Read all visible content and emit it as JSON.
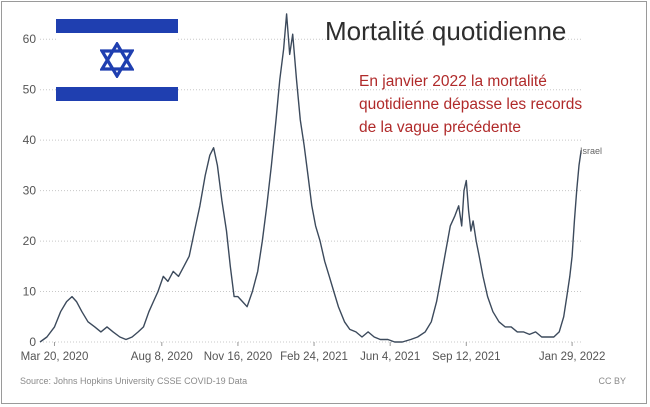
{
  "chart_data": {
    "type": "line",
    "title": "Mortalité quotidienne",
    "annotation": [
      "En janvier 2022 la mortalité",
      "quotidienne  dépasse les records",
      "de la vague précédente"
    ],
    "xlabel": "",
    "ylabel": "",
    "x_tick_labels": [
      "Mar 20, 2020",
      "Aug 8, 2020",
      "Nov 16, 2020",
      "Feb 24, 2021",
      "Jun 4, 2021",
      "Sep 12, 2021",
      "Jan 29, 2022"
    ],
    "x_tick_dates": [
      "2020-03-20",
      "2020-08-08",
      "2020-11-16",
      "2021-02-24",
      "2021-06-04",
      "2021-09-12",
      "2022-01-29"
    ],
    "xlim": [
      "2020-03-01",
      "2022-02-11"
    ],
    "ylim": [
      0,
      65
    ],
    "y_ticks": [
      0,
      10,
      20,
      30,
      40,
      50,
      60
    ],
    "grid": "horizontal",
    "series": [
      {
        "name": "Israel",
        "color": "#3c4a5c",
        "points": [
          [
            "2020-03-01",
            0
          ],
          [
            "2020-03-10",
            1
          ],
          [
            "2020-03-20",
            3
          ],
          [
            "2020-03-28",
            6
          ],
          [
            "2020-04-05",
            8
          ],
          [
            "2020-04-12",
            9
          ],
          [
            "2020-04-18",
            8
          ],
          [
            "2020-04-25",
            6
          ],
          [
            "2020-05-03",
            4
          ],
          [
            "2020-05-12",
            3
          ],
          [
            "2020-05-20",
            2
          ],
          [
            "2020-05-28",
            3
          ],
          [
            "2020-06-05",
            2
          ],
          [
            "2020-06-14",
            1
          ],
          [
            "2020-06-22",
            0.5
          ],
          [
            "2020-06-30",
            1
          ],
          [
            "2020-07-08",
            2
          ],
          [
            "2020-07-15",
            3
          ],
          [
            "2020-07-22",
            6
          ],
          [
            "2020-07-28",
            8
          ],
          [
            "2020-08-03",
            10
          ],
          [
            "2020-08-10",
            13
          ],
          [
            "2020-08-16",
            12
          ],
          [
            "2020-08-23",
            14
          ],
          [
            "2020-08-30",
            13
          ],
          [
            "2020-09-06",
            15
          ],
          [
            "2020-09-13",
            17
          ],
          [
            "2020-09-20",
            22
          ],
          [
            "2020-09-27",
            27
          ],
          [
            "2020-10-04",
            33
          ],
          [
            "2020-10-10",
            37
          ],
          [
            "2020-10-15",
            38.5
          ],
          [
            "2020-10-20",
            35
          ],
          [
            "2020-10-26",
            28
          ],
          [
            "2020-11-01",
            22
          ],
          [
            "2020-11-06",
            15
          ],
          [
            "2020-11-11",
            9
          ],
          [
            "2020-11-16",
            9
          ],
          [
            "2020-11-22",
            8
          ],
          [
            "2020-11-28",
            7
          ],
          [
            "2020-12-05",
            10
          ],
          [
            "2020-12-12",
            14
          ],
          [
            "2020-12-18",
            20
          ],
          [
            "2020-12-24",
            27
          ],
          [
            "2020-12-30",
            35
          ],
          [
            "2021-01-05",
            44
          ],
          [
            "2021-01-10",
            52
          ],
          [
            "2021-01-15",
            58
          ],
          [
            "2021-01-19",
            65
          ],
          [
            "2021-01-23",
            57
          ],
          [
            "2021-01-27",
            61
          ],
          [
            "2021-02-01",
            52
          ],
          [
            "2021-02-06",
            44
          ],
          [
            "2021-02-11",
            39
          ],
          [
            "2021-02-16",
            33
          ],
          [
            "2021-02-21",
            27
          ],
          [
            "2021-02-26",
            23
          ],
          [
            "2021-03-04",
            20
          ],
          [
            "2021-03-10",
            16
          ],
          [
            "2021-03-16",
            13
          ],
          [
            "2021-03-22",
            10
          ],
          [
            "2021-03-28",
            7
          ],
          [
            "2021-04-05",
            4
          ],
          [
            "2021-04-12",
            2.5
          ],
          [
            "2021-04-20",
            2
          ],
          [
            "2021-04-28",
            1
          ],
          [
            "2021-05-06",
            2
          ],
          [
            "2021-05-14",
            1
          ],
          [
            "2021-05-22",
            0.5
          ],
          [
            "2021-06-01",
            0.5
          ],
          [
            "2021-06-10",
            0
          ],
          [
            "2021-06-20",
            0
          ],
          [
            "2021-07-01",
            0.5
          ],
          [
            "2021-07-10",
            1
          ],
          [
            "2021-07-20",
            2
          ],
          [
            "2021-07-28",
            4
          ],
          [
            "2021-08-04",
            8
          ],
          [
            "2021-08-10",
            13
          ],
          [
            "2021-08-16",
            18
          ],
          [
            "2021-08-22",
            23
          ],
          [
            "2021-08-28",
            25
          ],
          [
            "2021-09-02",
            27
          ],
          [
            "2021-09-06",
            23
          ],
          [
            "2021-09-09",
            30
          ],
          [
            "2021-09-12",
            32
          ],
          [
            "2021-09-15",
            26
          ],
          [
            "2021-09-18",
            22
          ],
          [
            "2021-09-21",
            24
          ],
          [
            "2021-09-25",
            20
          ],
          [
            "2021-09-29",
            17
          ],
          [
            "2021-10-04",
            13
          ],
          [
            "2021-10-10",
            9
          ],
          [
            "2021-10-17",
            6
          ],
          [
            "2021-10-25",
            4
          ],
          [
            "2021-11-02",
            3
          ],
          [
            "2021-11-10",
            3
          ],
          [
            "2021-11-18",
            2
          ],
          [
            "2021-11-26",
            2
          ],
          [
            "2021-12-04",
            1.5
          ],
          [
            "2021-12-12",
            2
          ],
          [
            "2021-12-20",
            1
          ],
          [
            "2021-12-28",
            1
          ],
          [
            "2022-01-05",
            1
          ],
          [
            "2022-01-12",
            2
          ],
          [
            "2022-01-18",
            5
          ],
          [
            "2022-01-22",
            9
          ],
          [
            "2022-01-26",
            13
          ],
          [
            "2022-01-29",
            17
          ],
          [
            "2022-02-01",
            24
          ],
          [
            "2022-02-04",
            30
          ],
          [
            "2022-02-07",
            35
          ],
          [
            "2022-02-10",
            38
          ]
        ]
      }
    ]
  },
  "footer": {
    "source": "Source: Johns Hopkins University CSSE COVID-19 Data",
    "license": "CC BY"
  },
  "flag": {
    "icon": "israel-flag",
    "blue": "#1f3fb0"
  }
}
